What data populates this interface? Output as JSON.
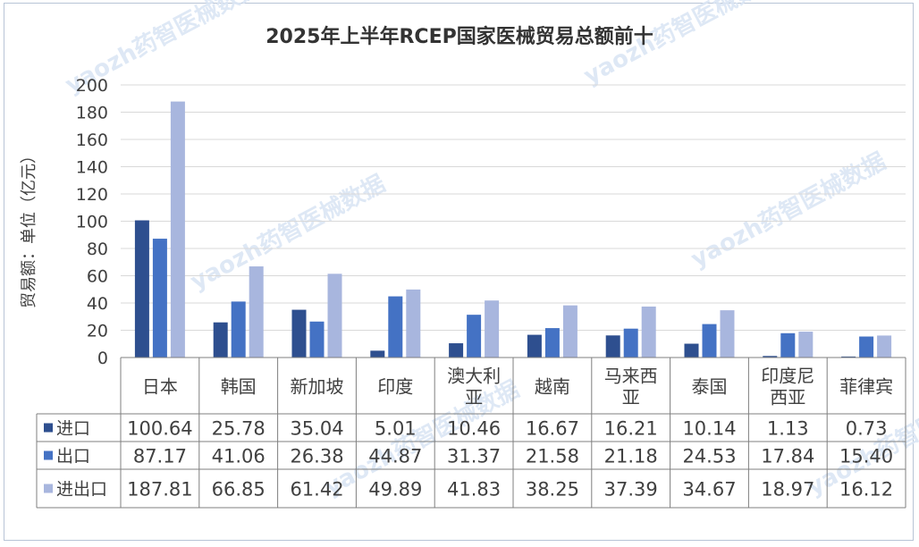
{
  "chart_data": {
    "type": "bar",
    "title": "2025年上半年RCEP国家医械贸易总额前十",
    "ylabel": "贸易额：单位（亿元）",
    "xlabel": "",
    "ylim": [
      0,
      200
    ],
    "yticks": [
      0,
      20,
      40,
      60,
      80,
      100,
      120,
      140,
      160,
      180,
      200
    ],
    "grid": true,
    "legend": "table-left",
    "categories": [
      [
        "日本"
      ],
      [
        "韩国"
      ],
      [
        "新加坡"
      ],
      [
        "印度"
      ],
      [
        "澳大利",
        "亚"
      ],
      [
        "越南"
      ],
      [
        "马来西",
        "亚"
      ],
      [
        "泰国"
      ],
      [
        "印度尼",
        "西亚"
      ],
      [
        "菲律宾"
      ]
    ],
    "series": [
      {
        "name": "进口",
        "color": "#2e4f8f",
        "values": [
          100.64,
          25.78,
          35.04,
          5.01,
          10.46,
          16.67,
          16.21,
          10.14,
          1.13,
          0.73
        ],
        "labels": [
          "100.64",
          "25.78",
          "35.04",
          "5.01",
          "10.46",
          "16.67",
          "16.21",
          "10.14",
          "1.13",
          "0.73"
        ]
      },
      {
        "name": "出口",
        "color": "#4472c4",
        "values": [
          87.17,
          41.06,
          26.38,
          44.87,
          31.37,
          21.58,
          21.18,
          24.53,
          17.84,
          15.4
        ],
        "labels": [
          "87.17",
          "41.06",
          "26.38",
          "44.87",
          "31.37",
          "21.58",
          "21.18",
          "24.53",
          "17.84",
          "15.40"
        ]
      },
      {
        "name": "进出口",
        "color": "#a8b6de",
        "values": [
          187.81,
          66.85,
          61.42,
          49.89,
          41.83,
          38.25,
          37.39,
          34.67,
          18.97,
          16.12
        ],
        "labels": [
          "187.81",
          "66.85",
          "61.42",
          "49.89",
          "41.83",
          "38.25",
          "37.39",
          "34.67",
          "18.97",
          "16.12"
        ]
      }
    ]
  },
  "watermark": {
    "text": "yaozh药智医械数据"
  }
}
